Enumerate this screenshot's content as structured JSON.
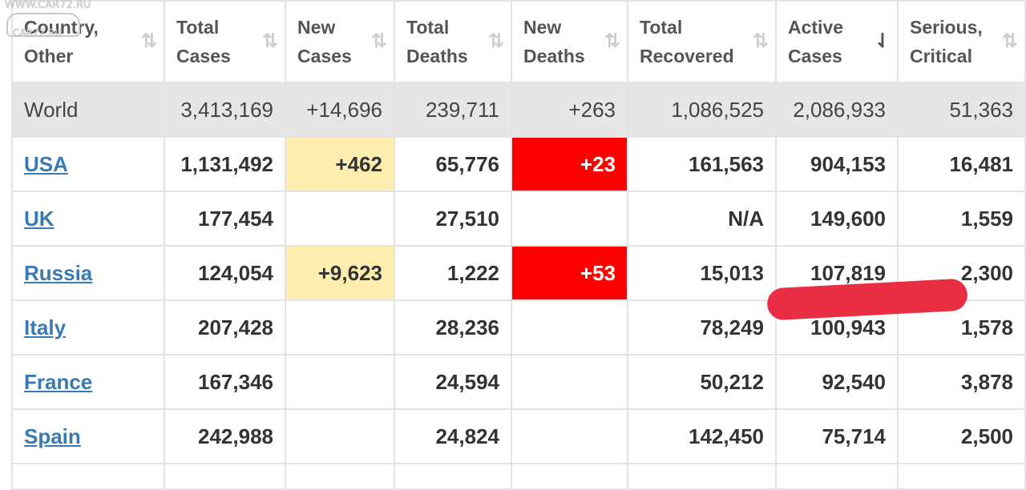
{
  "watermark": {
    "line1": "WWW.CAR72.RU",
    "line2": "CAR72.RU"
  },
  "columns": [
    {
      "line1": "Country,",
      "line2": "Other"
    },
    {
      "line1": "Total",
      "line2": "Cases"
    },
    {
      "line1": "New",
      "line2": "Cases"
    },
    {
      "line1": "Total",
      "line2": "Deaths"
    },
    {
      "line1": "New",
      "line2": "Deaths"
    },
    {
      "line1": "Total",
      "line2": "Recovered"
    },
    {
      "line1": "Active",
      "line2": "Cases"
    },
    {
      "line1": "Serious,",
      "line2": "Critical"
    }
  ],
  "sort_icon": "⇅",
  "active_sort_icon": "⇃",
  "world": {
    "name": "World",
    "total_cases": "3,413,169",
    "new_cases": "+14,696",
    "total_deaths": "239,711",
    "new_deaths": "+263",
    "total_recovered": "1,086,525",
    "active_cases": "2,086,933",
    "serious_critical": "51,363"
  },
  "rows": [
    {
      "name": "USA",
      "total_cases": "1,131,492",
      "new_cases": "+462",
      "total_deaths": "65,776",
      "new_deaths": "+23",
      "total_recovered": "161,563",
      "active_cases": "904,153",
      "serious_critical": "16,481"
    },
    {
      "name": "UK",
      "total_cases": "177,454",
      "new_cases": "",
      "total_deaths": "27,510",
      "new_deaths": "",
      "total_recovered": "N/A",
      "active_cases": "149,600",
      "serious_critical": "1,559"
    },
    {
      "name": "Russia",
      "total_cases": "124,054",
      "new_cases": "+9,623",
      "total_deaths": "1,222",
      "new_deaths": "+53",
      "total_recovered": "15,013",
      "active_cases": "107,819",
      "serious_critical": "2,300"
    },
    {
      "name": "Italy",
      "total_cases": "207,428",
      "new_cases": "",
      "total_deaths": "28,236",
      "new_deaths": "",
      "total_recovered": "78,249",
      "active_cases": "100,943",
      "serious_critical": "1,578"
    },
    {
      "name": "France",
      "total_cases": "167,346",
      "new_cases": "",
      "total_deaths": "24,594",
      "new_deaths": "",
      "total_recovered": "50,212",
      "active_cases": "92,540",
      "serious_critical": "3,878"
    },
    {
      "name": "Spain",
      "total_cases": "242,988",
      "new_cases": "",
      "total_deaths": "24,824",
      "new_deaths": "",
      "total_recovered": "142,450",
      "active_cases": "75,714",
      "serious_critical": "2,500"
    }
  ],
  "colors": {
    "new_cases_highlight": "#fdeeb0",
    "new_deaths_highlight": "#ff0000",
    "link": "#3a7ab3",
    "world_row": "#e6e6e6",
    "marker": "#e8263c"
  }
}
